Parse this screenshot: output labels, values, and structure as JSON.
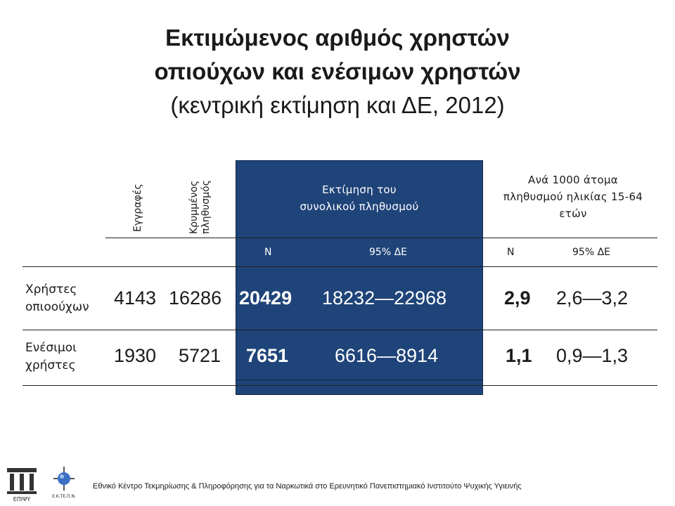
{
  "title": {
    "line1": "Εκτιμώμενος αριθμός χρηστών",
    "line2": "οπιούχων και ενέσιμων χρηστών",
    "line3": "(κεντρική εκτίμηση και ΔΕ, 2012)"
  },
  "table": {
    "col_registrations": "Εγγραφές",
    "col_hidden_line1": "Κρυμμένος",
    "col_hidden_line2": "πληθυσμός",
    "col_total_estimate_line1": "Εκτίμηση του",
    "col_total_estimate_line2": "συνολικού πληθυσμού",
    "col_per1000_line1": "Ανά 1000 άτομα",
    "col_per1000_line2": "πληθυσμού ηλικίας 15-64",
    "col_per1000_line3": "ετών",
    "sub_n_total": "N",
    "sub_ci_total": "95% ΔΕ",
    "sub_n_per1000": "N",
    "sub_ci_per1000": "95% ΔΕ",
    "rows": [
      {
        "label_line1": "Χρήστες",
        "label_line2": "οπιοούχων",
        "registrations": "4143",
        "hidden": "16286",
        "total_n": "20429",
        "total_ci": "18232—22968",
        "per1000_n": "2,9",
        "per1000_ci": "2,6—3,2"
      },
      {
        "label_line1": "Ενέσιμοι",
        "label_line2": "χρήστες",
        "registrations": "1930",
        "hidden": "5721",
        "total_n": "7651",
        "total_ci": "6616—8914",
        "per1000_n": "1,1",
        "per1000_ci": "0,9—1,3"
      }
    ]
  },
  "footer": {
    "text": "Εθνικό Κέντρο Τεκμηρίωσης & Πληροφόρησης για τα Ναρκωτικά στο Ερευνητικό Πανεπιστημιακό Ινστιτούτο Ψυχικής Υγιεινής"
  },
  "logos": {
    "logo1_text": "ΕΠΙΨΥ",
    "logo2_text": "Ε.Κ.ΤΕ.Π.Ν."
  },
  "colors": {
    "highlight_band": "#1f4479",
    "text": "#1a1a1a"
  }
}
